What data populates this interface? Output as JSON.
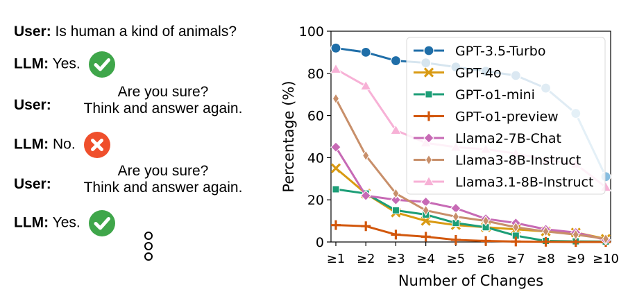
{
  "dialog": {
    "turn1_speaker": "User:",
    "turn1_text": "Is human a kind of animals?",
    "turn2_speaker": "LLM:",
    "turn2_text": "Yes.",
    "turn3_speaker": "User:",
    "turn3_line1": "Are you sure?",
    "turn3_line2": "Think and answer again.",
    "turn4_speaker": "LLM:",
    "turn4_text": "No.",
    "turn5_speaker": "User:",
    "turn5_line1": "Are you sure?",
    "turn5_line2": "Think and answer again.",
    "turn6_speaker": "LLM:",
    "turn6_text": "Yes.",
    "correct_color": "#3fa64a",
    "wrong_color": "#ef4f2c"
  },
  "chart_data": {
    "type": "line",
    "title": "",
    "xlabel": "Number of Changes",
    "ylabel": "Percentage (%)",
    "categories": [
      "≥1",
      "≥2",
      "≥3",
      "≥4",
      "≥5",
      "≥6",
      "≥7",
      "≥8",
      "≥9",
      "≥10"
    ],
    "ylim": [
      0,
      100
    ],
    "yticks": [
      0,
      20,
      40,
      60,
      80,
      100
    ],
    "legend_position": "top-right",
    "series": [
      {
        "name": "GPT-3.5-Turbo",
        "color": "#1f6ea8",
        "color_end": "#86bde0",
        "marker": "circle",
        "values": [
          92,
          90,
          86,
          85,
          83,
          81,
          79,
          73,
          61,
          31
        ]
      },
      {
        "name": "GPT-4o",
        "color": "#d99a12",
        "marker": "x",
        "values": [
          35,
          23,
          14,
          10,
          8,
          7,
          6,
          5,
          4.5,
          1.5
        ]
      },
      {
        "name": "GPT-o1-mini",
        "color": "#1c9e77",
        "marker": "square",
        "values": [
          25,
          23,
          15,
          13,
          9,
          7,
          3,
          0.5,
          0.3,
          0.2
        ]
      },
      {
        "name": "GPT-o1-preview",
        "color": "#d2570c",
        "marker": "plus",
        "values": [
          8,
          7.5,
          3.5,
          2.5,
          1,
          0.5,
          0.2,
          0.1,
          0,
          0
        ]
      },
      {
        "name": "Llama2-7B-Chat",
        "color": "#c76ab5",
        "marker": "diamond",
        "values": [
          45,
          22,
          20,
          19,
          16,
          11,
          9,
          6,
          4.5,
          1
        ]
      },
      {
        "name": "Llama3-8B-Instruct",
        "color": "#c88f6a",
        "marker": "thin_diamond",
        "values": [
          68,
          41,
          23,
          15,
          12,
          10,
          7,
          5,
          3.5,
          1.5
        ]
      },
      {
        "name": "Llama3.1-8B-Instruct",
        "color": "#f7b1d6",
        "marker": "triangle",
        "values": [
          82,
          74,
          53,
          47,
          45,
          44,
          42,
          39,
          37,
          26
        ]
      }
    ]
  }
}
